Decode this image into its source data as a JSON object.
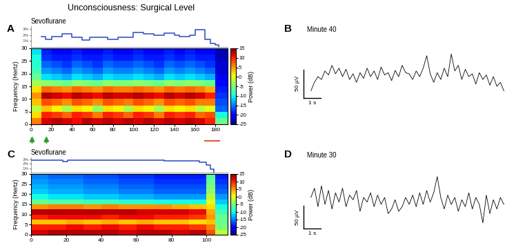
{
  "title": "Unconsciousness: Surgical Level",
  "chart_data": [
    {
      "type": "line",
      "title": "Sevoflurane",
      "color": "#3a56c5",
      "line_style": "steps",
      "x": [
        10,
        14,
        20,
        30,
        40,
        50,
        57,
        75,
        85,
        95,
        100,
        110,
        120,
        130,
        140,
        145,
        155,
        160,
        170,
        175,
        180,
        183
      ],
      "values": [
        1.7,
        1.3,
        1.7,
        2.2,
        1.6,
        1.2,
        1.6,
        1.3,
        1.6,
        1.6,
        2.5,
        2.2,
        2.0,
        2.3,
        2.0,
        1.8,
        2.0,
        2.9,
        1.3,
        0.6,
        0.3,
        0
      ],
      "xlim": [
        0,
        192
      ],
      "ylim": [
        0,
        3.5
      ],
      "yticks": [
        {
          "value": 1,
          "label": "1%"
        },
        {
          "value": 2,
          "label": "2%"
        },
        {
          "value": 3,
          "label": "3%"
        }
      ],
      "tick_labels": "y"
    },
    {
      "type": "heatmap",
      "panel": "A",
      "y_label": "Frequency (Hertz)",
      "x_edges": [
        0,
        10,
        20,
        30,
        40,
        50,
        60,
        70,
        80,
        90,
        100,
        110,
        120,
        130,
        140,
        150,
        160,
        170,
        180,
        192
      ],
      "y_edges": [
        0,
        2.5,
        5,
        7.5,
        10,
        12.5,
        15,
        17.5,
        20,
        22.5,
        25,
        27.5,
        30
      ],
      "cells": [
        [
          6,
          12,
          13,
          12,
          11,
          13,
          12,
          13,
          12,
          13,
          12,
          13,
          12,
          13,
          12,
          13,
          12,
          10,
          -6
        ],
        [
          2,
          10,
          9,
          7,
          10,
          9,
          6,
          10,
          9,
          7,
          10,
          9,
          6,
          10,
          9,
          10,
          7,
          8,
          -10
        ],
        [
          -2,
          3,
          1,
          -3,
          2,
          1,
          -4,
          2,
          1,
          -3,
          2,
          1,
          -3,
          2,
          1,
          2,
          -2,
          0,
          -16
        ],
        [
          3,
          8,
          7,
          5,
          8,
          7,
          5,
          8,
          7,
          6,
          8,
          7,
          5,
          8,
          7,
          8,
          6,
          6,
          -17
        ],
        [
          5,
          13,
          12,
          11,
          13,
          12,
          11,
          13,
          12,
          12,
          13,
          12,
          11,
          13,
          12,
          13,
          12,
          10,
          -18
        ],
        [
          2,
          7,
          6,
          5,
          7,
          6,
          5,
          7,
          6,
          6,
          7,
          6,
          5,
          7,
          6,
          7,
          6,
          4,
          -19
        ],
        [
          -3,
          -4,
          -5,
          -6,
          -4,
          -5,
          -6,
          -4,
          -5,
          -5,
          -4,
          -5,
          -6,
          -4,
          -5,
          -4,
          -5,
          -6,
          -20
        ],
        [
          -6,
          -11,
          -12,
          -13,
          -11,
          -12,
          -13,
          -11,
          -12,
          -12,
          -11,
          -12,
          -13,
          -11,
          -12,
          -11,
          -12,
          -13,
          -21
        ],
        [
          -8,
          -14,
          -15,
          -16,
          -14,
          -15,
          -16,
          -14,
          -15,
          -15,
          -14,
          -15,
          -16,
          -14,
          -15,
          -14,
          -15,
          -16,
          -22
        ],
        [
          -9,
          -16,
          -17,
          -18,
          -16,
          -17,
          -18,
          -16,
          -17,
          -17,
          -16,
          -17,
          -18,
          -16,
          -17,
          -16,
          -17,
          -18,
          -22
        ],
        [
          -10,
          -18,
          -19,
          -19,
          -18,
          -19,
          -19,
          -18,
          -19,
          -19,
          -18,
          -19,
          -19,
          -18,
          -19,
          -18,
          -19,
          -19,
          -23
        ],
        [
          -11,
          -19,
          -20,
          -20,
          -19,
          -20,
          -20,
          -19,
          -20,
          -20,
          -19,
          -20,
          -20,
          -19,
          -20,
          -19,
          -20,
          -20,
          -23
        ]
      ],
      "xlim": [
        0,
        192
      ],
      "xticks": [
        0,
        20,
        40,
        60,
        80,
        100,
        120,
        140,
        160,
        180
      ],
      "ylim": [
        0,
        30
      ],
      "yticks": [
        0,
        5,
        10,
        15,
        20,
        25,
        30
      ],
      "colorbar": {
        "label": "Power (dB)",
        "range": [
          -25,
          15
        ],
        "ticks": [
          15,
          10,
          5,
          0,
          -5,
          -10,
          -15,
          -20,
          -25
        ]
      },
      "events": [
        1,
        15
      ],
      "interval": [
        170,
        184
      ]
    },
    {
      "type": "line",
      "panel": "B",
      "title": "Minute 40",
      "color": "#000000",
      "tick_labels": false,
      "x": [
        0,
        0.2,
        0.4,
        0.6,
        0.8,
        1,
        1.2,
        1.4,
        1.6,
        1.8,
        2,
        2.2,
        2.4,
        2.6,
        2.8,
        3,
        3.2,
        3.4,
        3.6,
        3.8,
        4,
        4.2,
        4.4,
        4.6,
        4.8,
        5,
        5.2,
        5.4,
        5.6,
        5.8,
        6,
        6.2,
        6.4,
        6.6,
        6.8,
        7,
        7.2,
        7.4,
        7.6,
        7.8,
        8,
        8.2,
        8.4,
        8.6,
        8.8,
        9,
        9.2,
        9.4,
        9.6,
        9.8,
        10,
        10.2,
        10.4,
        10.6,
        10.8,
        11
      ],
      "values": [
        -20,
        -5,
        5,
        0,
        15,
        8,
        25,
        10,
        20,
        5,
        18,
        0,
        10,
        -5,
        12,
        2,
        20,
        5,
        15,
        0,
        22,
        8,
        12,
        -2,
        16,
        5,
        25,
        12,
        10,
        0,
        15,
        5,
        20,
        42,
        10,
        -5,
        12,
        0,
        20,
        5,
        45,
        15,
        25,
        0,
        18,
        5,
        10,
        -8,
        12,
        0,
        8,
        -10,
        5,
        -12,
        -5,
        -20
      ],
      "scale_bar": {
        "amplitude": 50,
        "amplitude_label": "50 µV",
        "time": 1,
        "time_label": "1 s"
      }
    },
    {
      "type": "line",
      "title": "Sevoflurane",
      "color": "#3a56c5",
      "line_style": "steps",
      "x": [
        0,
        18,
        21,
        76,
        96,
        100,
        102,
        104
      ],
      "values": [
        2.9,
        2.6,
        2.9,
        2.7,
        2.4,
        1.8,
        0.8,
        0
      ],
      "xlim": [
        0,
        112
      ],
      "ylim": [
        0,
        3.5
      ],
      "yticks": [
        {
          "value": 1,
          "label": "1%"
        },
        {
          "value": 2,
          "label": "2%"
        },
        {
          "value": 3,
          "label": "3%"
        }
      ],
      "tick_labels": "y"
    },
    {
      "type": "heatmap",
      "panel": "C",
      "y_label": "Frequency (Hertz)",
      "x_edges": [
        0,
        10,
        20,
        30,
        40,
        50,
        60,
        70,
        80,
        90,
        100,
        105,
        112
      ],
      "y_edges": [
        0,
        2.5,
        5,
        7.5,
        10,
        12.5,
        15,
        17.5,
        20,
        22.5,
        25,
        27.5,
        30
      ],
      "cells": [
        [
          12,
          13,
          13,
          13,
          13,
          12,
          13,
          13,
          12,
          13,
          8,
          -2
        ],
        [
          10,
          10,
          11,
          10,
          11,
          10,
          11,
          10,
          10,
          9,
          6,
          -5
        ],
        [
          3,
          3,
          4,
          3,
          4,
          3,
          4,
          3,
          3,
          2,
          3,
          -6
        ],
        [
          10,
          11,
          11,
          11,
          10,
          11,
          11,
          10,
          10,
          9,
          5,
          -6
        ],
        [
          13,
          13,
          13,
          13,
          13,
          13,
          12,
          12,
          12,
          11,
          4,
          -8
        ],
        [
          5,
          6,
          6,
          5,
          6,
          5,
          5,
          5,
          4,
          3,
          2,
          -10
        ],
        [
          -6,
          -7,
          -7,
          -8,
          -8,
          -9,
          -9,
          -10,
          -10,
          -10,
          0,
          -12
        ],
        [
          -10,
          -11,
          -11,
          -12,
          -12,
          -13,
          -13,
          -14,
          -14,
          -14,
          -2,
          -14
        ],
        [
          -12,
          -13,
          -13,
          -14,
          -14,
          -15,
          -15,
          -16,
          -16,
          -16,
          -4,
          -16
        ],
        [
          -13,
          -14,
          -14,
          -15,
          -15,
          -16,
          -16,
          -17,
          -17,
          -17,
          -5,
          -17
        ],
        [
          -14,
          -15,
          -15,
          -16,
          -16,
          -17,
          -17,
          -18,
          -18,
          -18,
          -6,
          -18
        ],
        [
          -15,
          -16,
          -16,
          -17,
          -17,
          -18,
          -18,
          -19,
          -19,
          -19,
          -7,
          -19
        ]
      ],
      "xlim": [
        0,
        112
      ],
      "xticks": [
        0,
        20,
        40,
        60,
        80,
        100
      ],
      "ylim": [
        0,
        30
      ],
      "yticks": [
        0,
        5,
        10,
        15,
        20,
        25,
        30
      ],
      "colorbar": {
        "label": "Power (dB)",
        "range": [
          -25,
          15
        ],
        "ticks": [
          15,
          10,
          5,
          0,
          -5,
          -10,
          -15,
          -20,
          -25
        ]
      }
    },
    {
      "type": "line",
      "panel": "D",
      "title": "Minute 30",
      "color": "#000000",
      "tick_labels": false,
      "x": [
        0,
        0.2,
        0.4,
        0.6,
        0.8,
        1,
        1.2,
        1.4,
        1.6,
        1.8,
        2,
        2.2,
        2.4,
        2.6,
        2.8,
        3,
        3.2,
        3.4,
        3.6,
        3.8,
        4,
        4.2,
        4.4,
        4.6,
        4.8,
        5,
        5.2,
        5.4,
        5.6,
        5.8,
        6,
        6.2,
        6.4,
        6.6,
        6.8,
        7,
        7.2,
        7.4,
        7.6,
        7.8,
        8,
        8.2,
        8.4,
        8.6,
        8.8,
        9,
        9.2,
        9.4,
        9.6,
        9.8,
        10,
        10.2,
        10.4,
        10.6,
        10.8,
        11
      ],
      "values": [
        10,
        30,
        -10,
        35,
        -5,
        25,
        -15,
        20,
        0,
        30,
        -10,
        15,
        5,
        25,
        -20,
        10,
        0,
        20,
        -10,
        15,
        -5,
        10,
        -25,
        -15,
        5,
        -20,
        -10,
        10,
        -5,
        15,
        -10,
        20,
        -5,
        25,
        0,
        20,
        55,
        10,
        -15,
        15,
        -5,
        10,
        -20,
        5,
        -10,
        20,
        -15,
        10,
        -5,
        -45,
        15,
        -25,
        5,
        -15,
        10,
        -5
      ],
      "scale_bar": {
        "amplitude": 50,
        "amplitude_label": "50 µV",
        "time": 1,
        "time_label": "1 s"
      }
    }
  ]
}
